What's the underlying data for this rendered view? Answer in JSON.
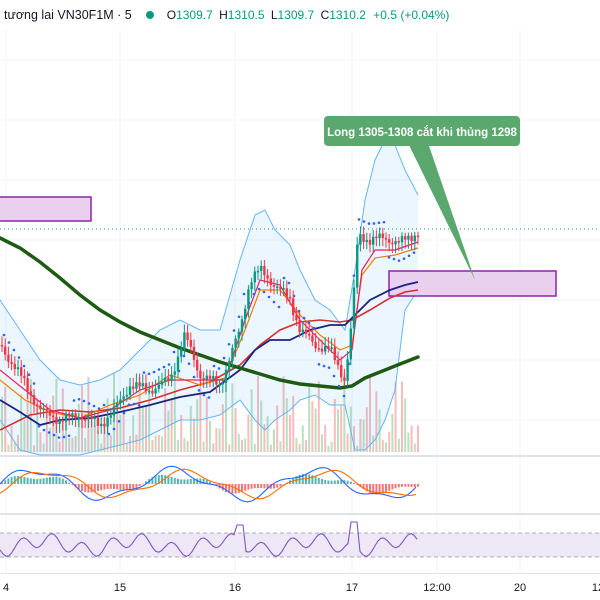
{
  "header": {
    "symbol_title": "tương lai VN30F1M · 5",
    "o_label": "O",
    "o_value": "1309.7",
    "h_label": "H",
    "h_value": "1310.5",
    "l_label": "L",
    "l_value": "1309.7",
    "c_label": "C",
    "c_value": "1310.2",
    "change": "+0.5 (+0.04%)",
    "up_color": "#089981"
  },
  "annotation": {
    "text": "Long 1305-1308 cắt khi thủng 1298",
    "bg_color": "#5aa86e"
  },
  "colors": {
    "up": "#089981",
    "down": "#f23645",
    "ma_long": "#1e5a14",
    "bollinger": "#64b5f6",
    "zone_fill": "#e9d0ef",
    "zone_border": "#8e24aa",
    "rsi_line": "#7e57c2",
    "rsi_band": "#ede7f6"
  },
  "x_axis": {
    "ticks": [
      "4",
      "15",
      "16",
      "17",
      "12:00",
      "20",
      "12"
    ]
  },
  "chart_data": {
    "type": "candlestick",
    "symbol": "VN30F1M",
    "interval": "5",
    "last_bar": {
      "open": 1309.7,
      "high": 1310.5,
      "low": 1309.7,
      "close": 1310.2,
      "change": 0.5,
      "change_pct": 0.04
    },
    "x_tick_labels": [
      "4",
      "15",
      "16",
      "17",
      "12:00",
      "20",
      "12"
    ],
    "zones": [
      {
        "note": "supply zone (left)"
      },
      {
        "note": "buy zone",
        "range": [
          1305,
          1308
        ],
        "stop": 1298
      }
    ],
    "annotation": "Long 1305-1308 cắt khi thủng 1298",
    "indicators": [
      "Bollinger Bands",
      "Moving averages",
      "Parabolic SAR",
      "Volume",
      "MACD",
      "RSI"
    ],
    "grid": true
  }
}
